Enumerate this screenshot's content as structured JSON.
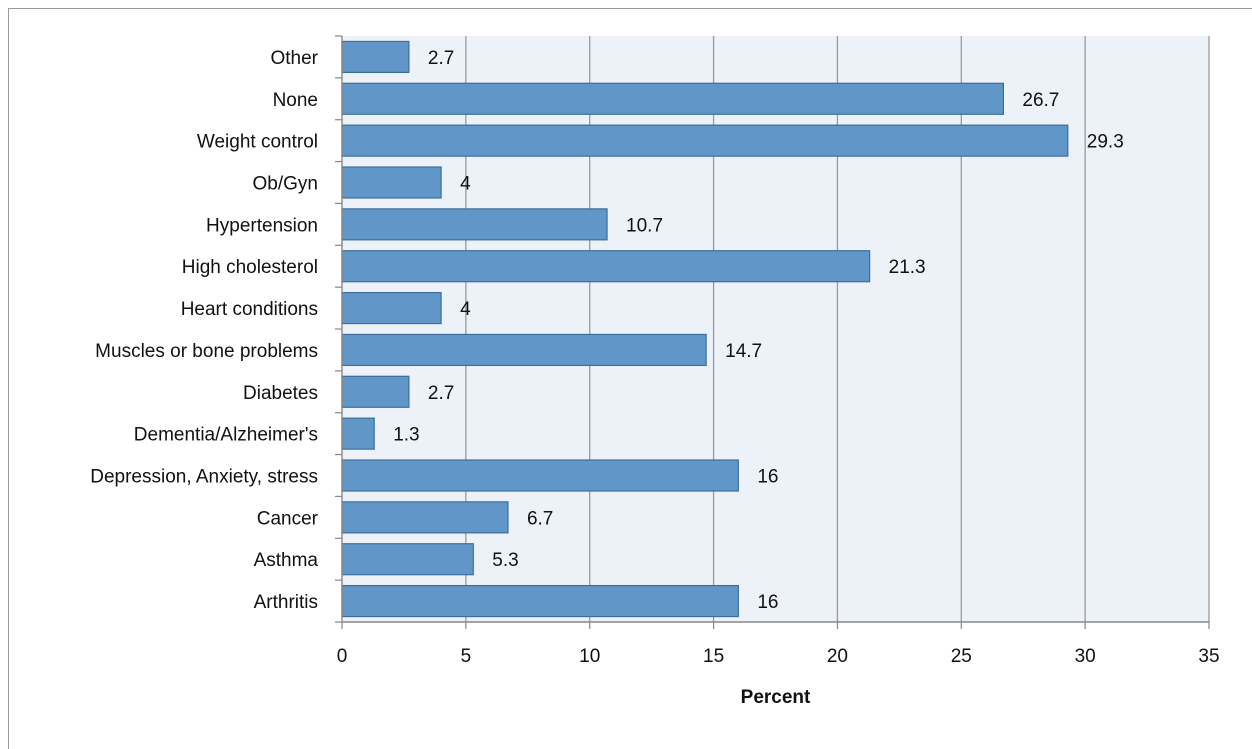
{
  "chart_data": {
    "type": "bar",
    "orientation": "horizontal",
    "categories": [
      "Arthritis",
      "Asthma",
      "Cancer",
      "Depression, Anxiety, stress",
      "Dementia/Alzheimer's",
      "Diabetes",
      "Muscles or bone problems",
      "Heart conditions",
      "High cholesterol",
      "Hypertension",
      "Ob/Gyn",
      "Weight control",
      "None",
      "Other"
    ],
    "values": [
      16,
      5.3,
      6.7,
      16,
      1.3,
      2.7,
      14.7,
      4,
      21.3,
      10.7,
      4,
      29.3,
      26.7,
      2.7
    ],
    "data_labels": [
      "16",
      "5.3",
      "6.7",
      "16",
      "1.3",
      "2.7",
      "14.7",
      "4",
      "21.3",
      "10.7",
      "4",
      "29.3",
      "26.7",
      "2.7"
    ],
    "xlabel": "Percent",
    "ylabel": "",
    "xlim": [
      0,
      35
    ],
    "xticks": [
      0,
      5,
      10,
      15,
      20,
      25,
      30,
      35
    ],
    "xtick_labels": [
      "0",
      "5",
      "10",
      "15",
      "20",
      "25",
      "30",
      "35"
    ],
    "grid": "vertical",
    "legend": "none",
    "colors": {
      "bar_fill": "#6197c8",
      "bar_stroke": "#3e6d9c",
      "plot_background": "#edf1f8",
      "gridline": "#9a9a9a",
      "axis": "#888888",
      "text": "#111111"
    }
  }
}
